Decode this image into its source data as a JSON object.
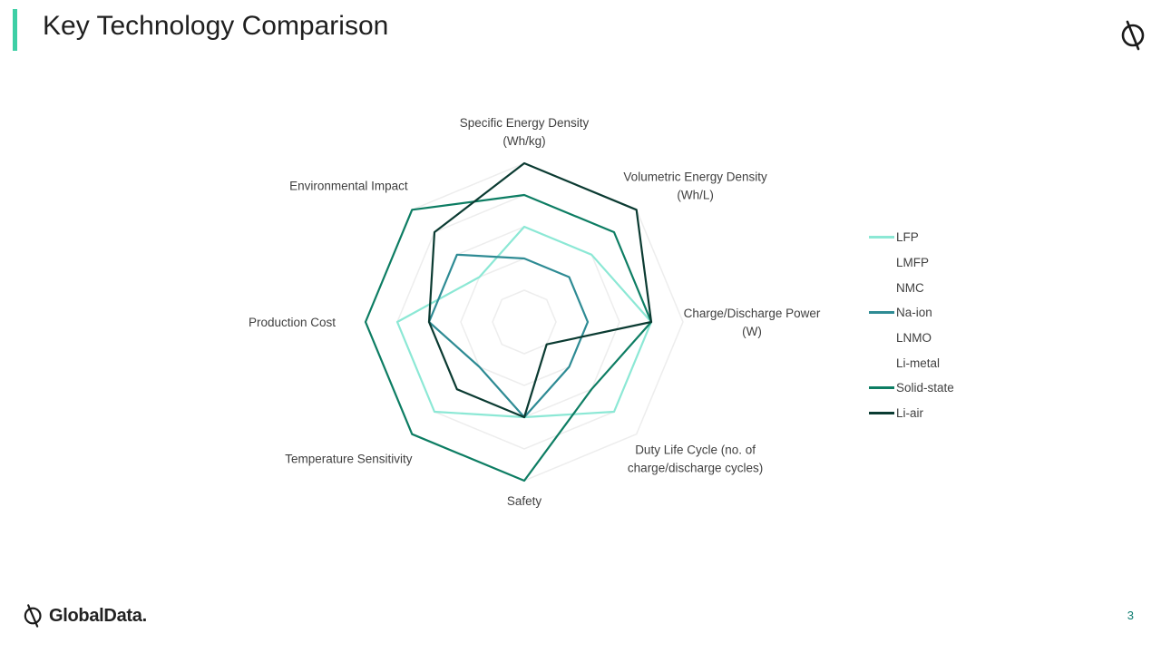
{
  "slide": {
    "title": "Key Technology Comparison",
    "page_number": "3",
    "brand": "GlobalData."
  },
  "colors": {
    "accent_bar": "#3ecfa5",
    "grid": "#ededed",
    "text": "#404040",
    "page_number": "#0a7a6e"
  },
  "chart_data": {
    "type": "radar",
    "title": "",
    "axes": [
      [
        "Specific Energy Density",
        "(Wh/kg)"
      ],
      [
        "Volumetric Energy Density",
        "(Wh/L)"
      ],
      [
        "Charge/Discharge Power",
        "(W)"
      ],
      [
        "Duty Life Cycle (no. of",
        "charge/discharge cycles)"
      ],
      [
        "Safety"
      ],
      [
        "Temperature Sensitivity"
      ],
      [
        "Production Cost"
      ],
      [
        "Environmental Impact"
      ]
    ],
    "scale": {
      "min": 0,
      "max": 5,
      "gridlines": 5
    },
    "series": [
      {
        "name": "LFP",
        "color": "#8ce8d5",
        "values": [
          3,
          3,
          4,
          4,
          3,
          4,
          4,
          2
        ],
        "visible": true
      },
      {
        "name": "LMFP",
        "color": "#ffffff",
        "values": [],
        "visible": false
      },
      {
        "name": "NMC",
        "color": "#ffffff",
        "values": [],
        "visible": false
      },
      {
        "name": "Na-ion",
        "color": "#2e8b94",
        "values": [
          2,
          2,
          2,
          2,
          3,
          2,
          3,
          3
        ],
        "visible": true
      },
      {
        "name": "LNMO",
        "color": "#ffffff",
        "values": [],
        "visible": false
      },
      {
        "name": "Li-metal",
        "color": "#ffffff",
        "values": [],
        "visible": false
      },
      {
        "name": "Solid-state",
        "color": "#0d7d63",
        "values": [
          4,
          4,
          4,
          3,
          5,
          5,
          5,
          5
        ],
        "visible": true
      },
      {
        "name": "Li-air",
        "color": "#0b3b32",
        "values": [
          5,
          5,
          4,
          1,
          3,
          3,
          3,
          4
        ],
        "visible": true
      }
    ]
  }
}
